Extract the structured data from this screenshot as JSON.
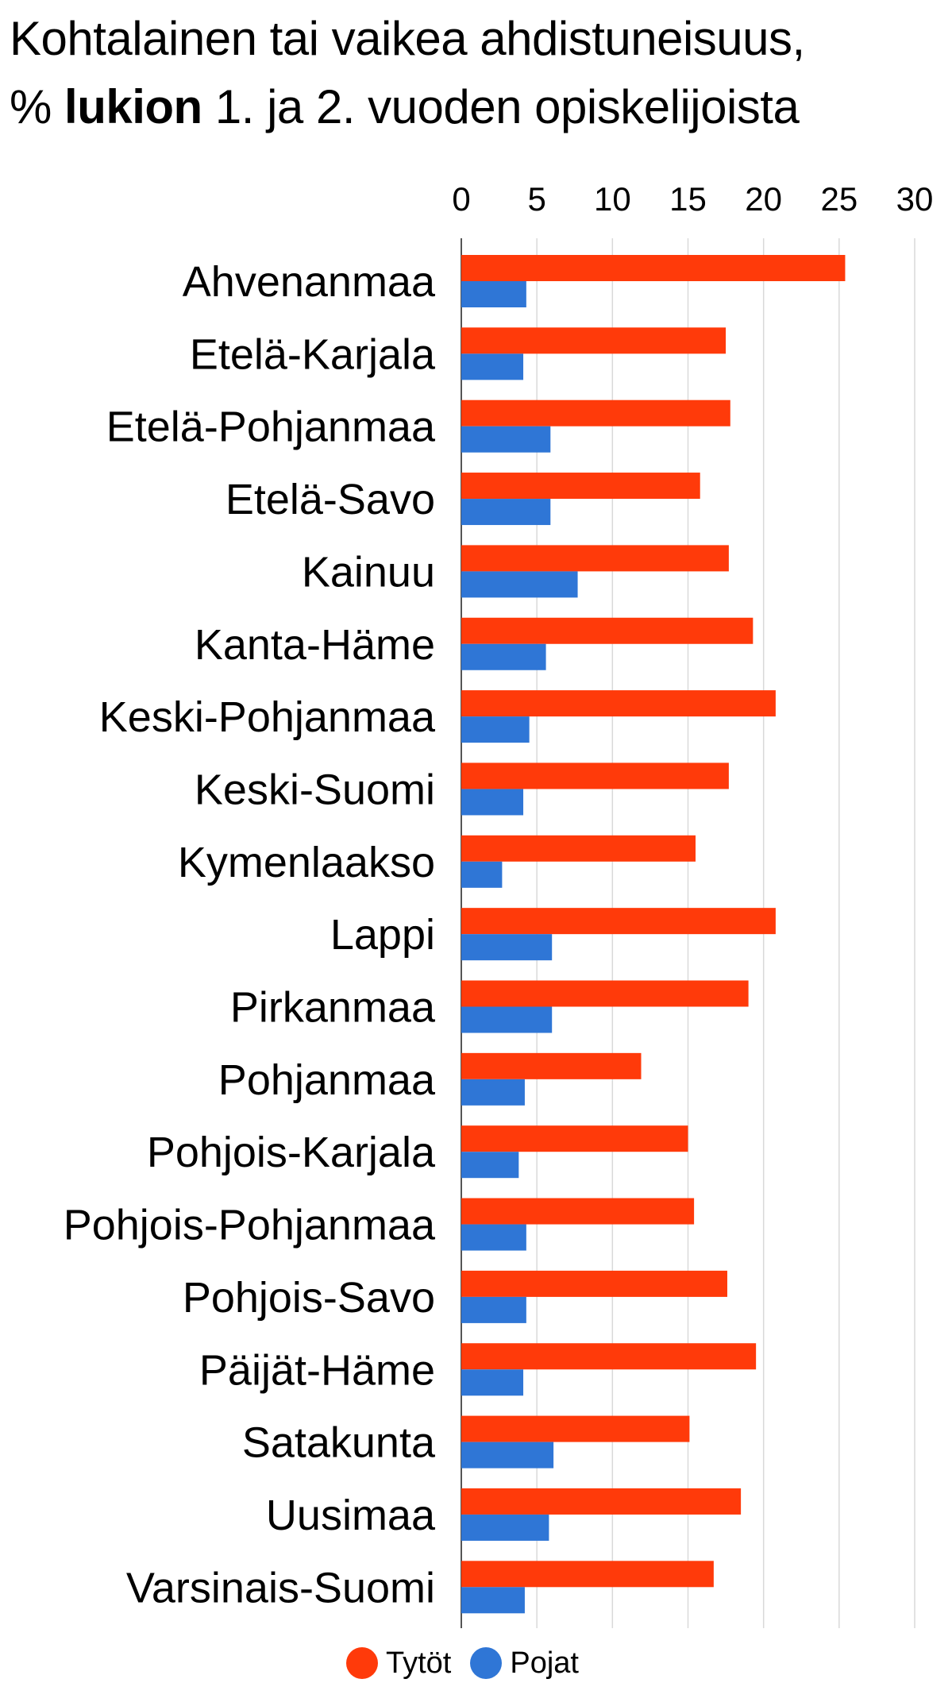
{
  "header": {
    "title_line1": "Kohtalainen tai vaikea ahdistuneisuus,",
    "title_prefix": "%",
    "title_bold": "lukion",
    "title_rest": "1. ja 2. vuoden opiskelijoista"
  },
  "colors": {
    "tytot": "#ff3a0a",
    "pojat": "#2f76d6",
    "grid": "#d9d9d9",
    "axis": "#555555"
  },
  "chart_data": {
    "type": "bar",
    "orientation": "horizontal",
    "title": "Kohtalainen tai vaikea ahdistuneisuus, % lukion 1. ja 2. vuoden opiskelijoista",
    "xlim": [
      0,
      30
    ],
    "xticks": [
      0,
      5,
      10,
      15,
      20,
      25,
      30
    ],
    "x_axis_position": "top",
    "grid": true,
    "legend_position": "bottom",
    "categories": [
      "Ahvenanmaa",
      "Etelä-Karjala",
      "Etelä-Pohjanmaa",
      "Etelä-Savo",
      "Kainuu",
      "Kanta-Häme",
      "Keski-Pohjanmaa",
      "Keski-Suomi",
      "Kymenlaakso",
      "Lappi",
      "Pirkanmaa",
      "Pohjanmaa",
      "Pohjois-Karjala",
      "Pohjois-Pohjanmaa",
      "Pohjois-Savo",
      "Päijät-Häme",
      "Satakunta",
      "Uusimaa",
      "Varsinais-Suomi"
    ],
    "series": [
      {
        "name": "Tytöt",
        "color": "#ff3a0a",
        "values": [
          25.4,
          17.5,
          17.8,
          15.8,
          17.7,
          19.3,
          20.8,
          17.7,
          15.5,
          20.8,
          19.0,
          11.9,
          15.0,
          15.4,
          17.6,
          19.5,
          15.1,
          18.5,
          16.7
        ]
      },
      {
        "name": "Pojat",
        "color": "#2f76d6",
        "values": [
          4.3,
          4.1,
          5.9,
          5.9,
          7.7,
          5.6,
          4.5,
          4.1,
          2.7,
          6.0,
          6.0,
          4.2,
          3.8,
          4.3,
          4.3,
          4.1,
          6.1,
          5.8,
          4.2
        ]
      }
    ]
  }
}
